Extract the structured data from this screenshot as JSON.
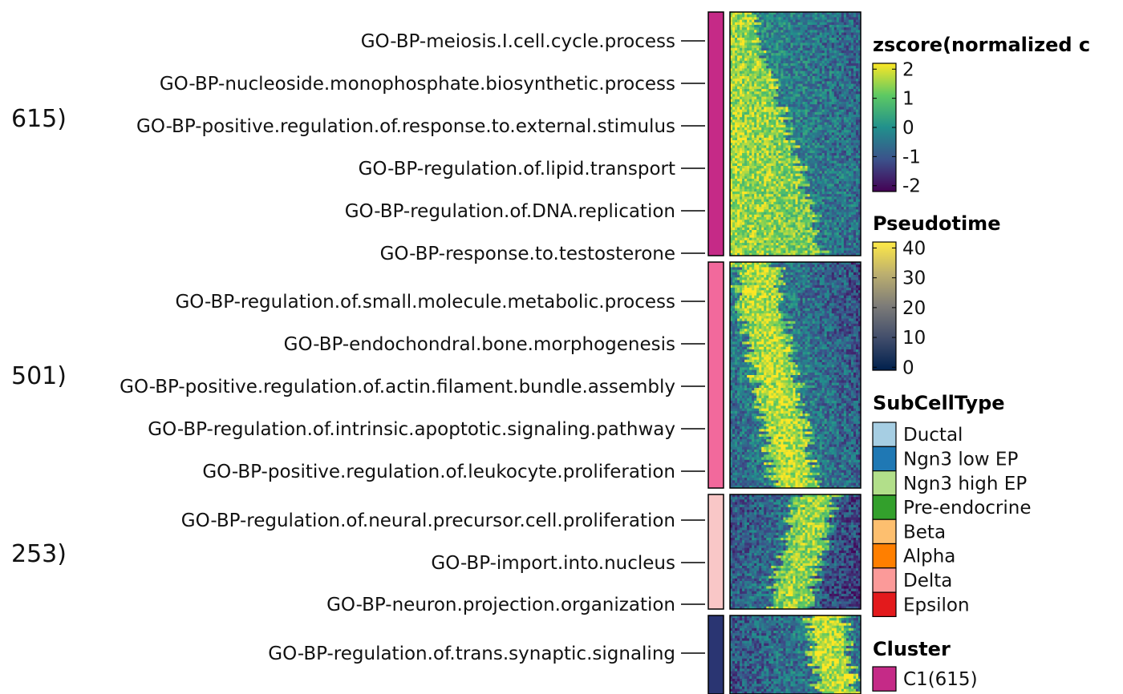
{
  "chart_data": {
    "type": "heatmap",
    "clusters": [
      {
        "label_fragment": "615)",
        "name": "C1(615)",
        "color": "#C52A87",
        "profile": "early",
        "terms": [
          "GO-BP-meiosis.I.cell.cycle.process",
          "GO-BP-nucleoside.monophosphate.biosynthetic.process",
          "GO-BP-positive.regulation.of.response.to.external.stimulus",
          "GO-BP-regulation.of.lipid.transport",
          "GO-BP-regulation.of.DNA.replication",
          "GO-BP-response.to.testosterone"
        ]
      },
      {
        "label_fragment": "501)",
        "color": "#F2699C",
        "profile": "early-mid",
        "terms": [
          "GO-BP-regulation.of.small.molecule.metabolic.process",
          "GO-BP-endochondral.bone.morphogenesis",
          "GO-BP-positive.regulation.of.actin.filament.bundle.assembly",
          "GO-BP-regulation.of.intrinsic.apoptotic.signaling.pathway",
          "GO-BP-positive.regulation.of.leukocyte.proliferation"
        ]
      },
      {
        "label_fragment": "253)",
        "color": "#F9C7C7",
        "profile": "mid-late",
        "terms": [
          "GO-BP-regulation.of.neural.precursor.cell.proliferation",
          "GO-BP-import.into.nucleus",
          "GO-BP-neuron.projection.organization"
        ]
      },
      {
        "label_fragment": "",
        "color": "#2A3572",
        "profile": "late",
        "terms": [
          "GO-BP-regulation.of.trans.synaptic.signaling"
        ]
      }
    ],
    "legends": {
      "zscore": {
        "title": "zscore(normalized c",
        "ticks": [
          "2",
          "1",
          "0",
          "-1",
          "-2"
        ],
        "tick_values": [
          2,
          1,
          0,
          -1,
          -2
        ],
        "range": [
          -2.2,
          2.2
        ],
        "colors": [
          "#440154",
          "#3B528B",
          "#21908C",
          "#5DC963",
          "#FDE725"
        ]
      },
      "pseudotime": {
        "title": "Pseudotime",
        "ticks": [
          "40",
          "30",
          "20",
          "10",
          "0"
        ],
        "tick_values": [
          40,
          30,
          20,
          10,
          0
        ],
        "range": [
          -1,
          42
        ],
        "colors": [
          "#00204D",
          "#414D6B",
          "#7C7B78",
          "#BCAF6F",
          "#FFEA46"
        ]
      },
      "subcelltype": {
        "title": "SubCellType",
        "entries": [
          {
            "label": "Ductal",
            "color": "#A6CEE3"
          },
          {
            "label": "Ngn3 low EP",
            "color": "#1F78B4"
          },
          {
            "label": "Ngn3 high EP",
            "color": "#B2DF8A"
          },
          {
            "label": "Pre-endocrine",
            "color": "#33A02C"
          },
          {
            "label": "Beta",
            "color": "#FDBF6F"
          },
          {
            "label": "Alpha",
            "color": "#FF7F00"
          },
          {
            "label": "Delta",
            "color": "#FB9A99"
          },
          {
            "label": "Epsilon",
            "color": "#E31A1C"
          }
        ]
      },
      "cluster": {
        "title": "Cluster",
        "entries": [
          {
            "label": "C1(615)",
            "color": "#C52A87"
          }
        ]
      }
    }
  }
}
